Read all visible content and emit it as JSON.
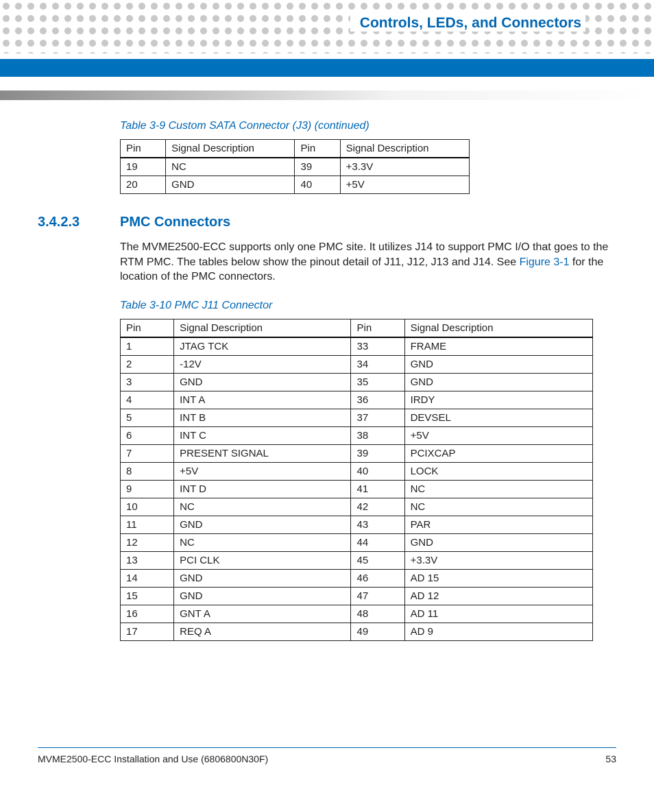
{
  "header": {
    "chapter_title": "Controls, LEDs, and Connectors"
  },
  "table1": {
    "caption": "Table 3-9 Custom SATA Connector (J3)  (continued)",
    "columns": [
      "Pin",
      "Signal Description",
      "Pin",
      "Signal Description"
    ],
    "rows": [
      [
        "19",
        "NC",
        "39",
        "+3.3V"
      ],
      [
        "20",
        "GND",
        "40",
        "+5V"
      ]
    ]
  },
  "section": {
    "number": "3.4.2.3",
    "title": "PMC Connectors",
    "body_pre": "The MVME2500-ECC supports only one PMC site. It utilizes J14 to support PMC I/O that goes to the RTM PMC. The tables below show the pinout detail of J11, J12, J13 and J14. See ",
    "body_link": "Figure 3-1",
    "body_post": " for the location of the PMC connectors."
  },
  "table2": {
    "caption": "Table 3-10 PMC J11 Connector",
    "columns": [
      "Pin",
      "Signal Description",
      "Pin",
      "Signal Description"
    ],
    "rows": [
      [
        "1",
        "JTAG TCK",
        "33",
        "FRAME"
      ],
      [
        "2",
        "-12V",
        "34",
        "GND"
      ],
      [
        "3",
        "GND",
        "35",
        "GND"
      ],
      [
        "4",
        "INT A",
        "36",
        "IRDY"
      ],
      [
        "5",
        "INT B",
        "37",
        "DEVSEL"
      ],
      [
        "6",
        "INT C",
        "38",
        "+5V"
      ],
      [
        "7",
        "PRESENT SIGNAL",
        "39",
        "PCIXCAP"
      ],
      [
        "8",
        "+5V",
        "40",
        "LOCK"
      ],
      [
        "9",
        "INT D",
        "41",
        "NC"
      ],
      [
        "10",
        "NC",
        "42",
        "NC"
      ],
      [
        "11",
        "GND",
        "43",
        "PAR"
      ],
      [
        "12",
        "NC",
        "44",
        "GND"
      ],
      [
        "13",
        "PCI CLK",
        "45",
        "+3.3V"
      ],
      [
        "14",
        "GND",
        "46",
        "AD 15"
      ],
      [
        "15",
        "GND",
        "47",
        "AD 12"
      ],
      [
        "16",
        "GNT A",
        "48",
        "AD 11"
      ],
      [
        "17",
        "REQ A",
        "49",
        "AD 9"
      ]
    ]
  },
  "footer": {
    "doc_title": "MVME2500-ECC Installation and Use (6806800N30F)",
    "page_number": "53"
  },
  "colors": {
    "brand_blue": "#0066b3",
    "bar_blue": "#0071bc",
    "dot_gray": "#c9c9c9",
    "text": "#222222"
  }
}
